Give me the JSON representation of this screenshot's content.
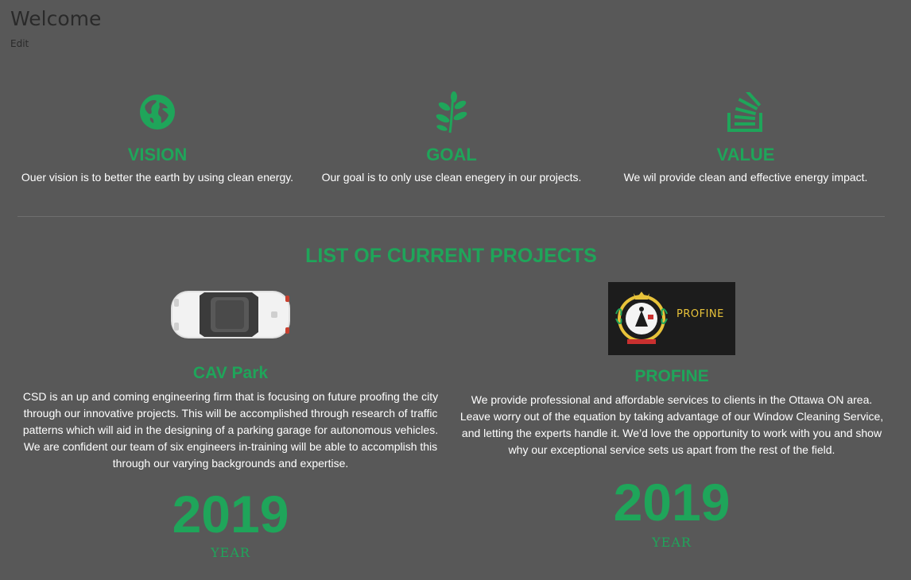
{
  "header": {
    "title": "Welcome",
    "edit_label": "Edit"
  },
  "features": [
    {
      "icon": "globe-icon",
      "title": "VISION",
      "text": "Ouer vision is to better the earth by using clean energy."
    },
    {
      "icon": "leaf-icon",
      "title": "GOAL",
      "text": "Our goal is to only use clean enegery in our projects."
    },
    {
      "icon": "stack-icon",
      "title": "VALUE",
      "text": "We wil provide clean and effective energy impact."
    }
  ],
  "projects_heading": "LIST OF CURRENT PROJECTS",
  "projects": [
    {
      "image": "car-top-view",
      "title": "CAV Park",
      "text": "CSD is an up and coming engineering firm that is focusing on future proofing the city through our innovative projects. This will be accomplished through research of traffic patterns which will aid in the designing of a parking garage for autonomous vehicles. We are confident our team of six engineers in-training will be able to accomplish this through our varying backgrounds and expertise.",
      "year": "2019",
      "year_label": "YEAR"
    },
    {
      "image": "profine-logo",
      "logo_text": "PROFINE",
      "title": "PROFINE",
      "text": "We provide professional and affordable services to clients in the Ottawa ON area. Leave worry out of the equation by taking advantage of our Window Cleaning Service, and letting the experts handle it. We’d love the opportunity to work with you and show why our exceptional service sets us apart from the rest of the field.",
      "year": "2019",
      "year_label": "YEAR"
    }
  ],
  "colors": {
    "background": "#585858",
    "accent": "#1fa55a",
    "text": "#ffffff"
  }
}
